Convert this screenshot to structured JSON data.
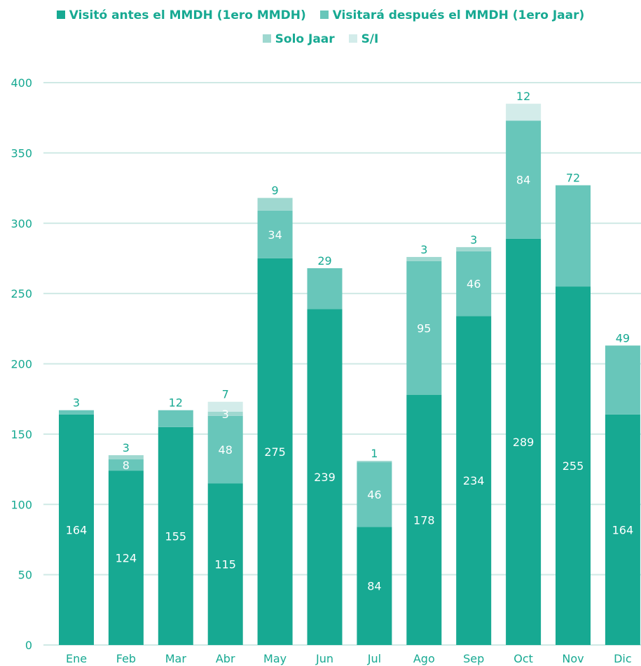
{
  "chart_data": {
    "type": "bar",
    "stacked": true,
    "categories": [
      "Ene",
      "Feb",
      "Mar",
      "Abr",
      "May",
      "Jun",
      "Jul",
      "Ago",
      "Sep",
      "Oct",
      "Nov",
      "Dic"
    ],
    "series": [
      {
        "name": "Visitó antes el MMDH (1ero MMDH)",
        "color": "#17a992",
        "values": [
          164,
          124,
          155,
          115,
          275,
          239,
          84,
          178,
          234,
          289,
          255,
          164
        ]
      },
      {
        "name": "Visitará después el MMDH (1ero Jaar)",
        "color": "#68c6ba",
        "values": [
          3,
          8,
          12,
          48,
          34,
          29,
          46,
          95,
          46,
          84,
          72,
          49
        ]
      },
      {
        "name": "Solo Jaar",
        "color": "#9fd8d0",
        "values": [
          0,
          3,
          0,
          3,
          9,
          0,
          1,
          3,
          3,
          0,
          0,
          0
        ]
      },
      {
        "name": "S/I",
        "color": "#d3ecea",
        "values": [
          0,
          0,
          0,
          7,
          0,
          0,
          0,
          0,
          0,
          12,
          0,
          0
        ]
      }
    ],
    "data_labels": [
      [
        {
          "series": 0,
          "text": "164"
        },
        {
          "series": 1,
          "text": "3",
          "above": true
        }
      ],
      [
        {
          "series": 0,
          "text": "124"
        },
        {
          "series": 1,
          "text": "8"
        },
        {
          "series": 2,
          "text": "3",
          "above": true
        }
      ],
      [
        {
          "series": 0,
          "text": "155"
        },
        {
          "series": 1,
          "text": "12",
          "above": true
        }
      ],
      [
        {
          "series": 0,
          "text": "115"
        },
        {
          "series": 1,
          "text": "48"
        },
        {
          "series": 2,
          "text": "3"
        },
        {
          "series": 3,
          "text": "7",
          "above": true
        }
      ],
      [
        {
          "series": 0,
          "text": "275"
        },
        {
          "series": 1,
          "text": "34"
        },
        {
          "series": 2,
          "text": "9",
          "above": true
        }
      ],
      [
        {
          "series": 0,
          "text": "239"
        },
        {
          "series": 1,
          "text": "29",
          "above": true
        }
      ],
      [
        {
          "series": 0,
          "text": "84"
        },
        {
          "series": 1,
          "text": "46"
        },
        {
          "series": 2,
          "text": "1",
          "above": true
        }
      ],
      [
        {
          "series": 0,
          "text": "178"
        },
        {
          "series": 1,
          "text": "95"
        },
        {
          "series": 2,
          "text": "3",
          "above": true
        }
      ],
      [
        {
          "series": 0,
          "text": "234"
        },
        {
          "series": 1,
          "text": "46"
        },
        {
          "series": 2,
          "text": "3",
          "above": true
        }
      ],
      [
        {
          "series": 0,
          "text": "289"
        },
        {
          "series": 1,
          "text": "84"
        },
        {
          "series": 3,
          "text": "12",
          "above": true
        }
      ],
      [
        {
          "series": 0,
          "text": "255"
        },
        {
          "series": 1,
          "text": "72",
          "above": true
        }
      ],
      [
        {
          "series": 0,
          "text": "164"
        },
        {
          "series": 1,
          "text": "49",
          "above": true
        }
      ]
    ],
    "ylim": [
      0,
      400
    ],
    "yticks": [
      0,
      50,
      100,
      150,
      200,
      250,
      300,
      350,
      400
    ],
    "grid": true,
    "legend_position": "top-center",
    "title": "",
    "xlabel": "",
    "ylabel": "",
    "colors": {
      "axis_text": "#17a992",
      "grid": "#cfe9e5",
      "inner_label": "#ffffff"
    }
  }
}
